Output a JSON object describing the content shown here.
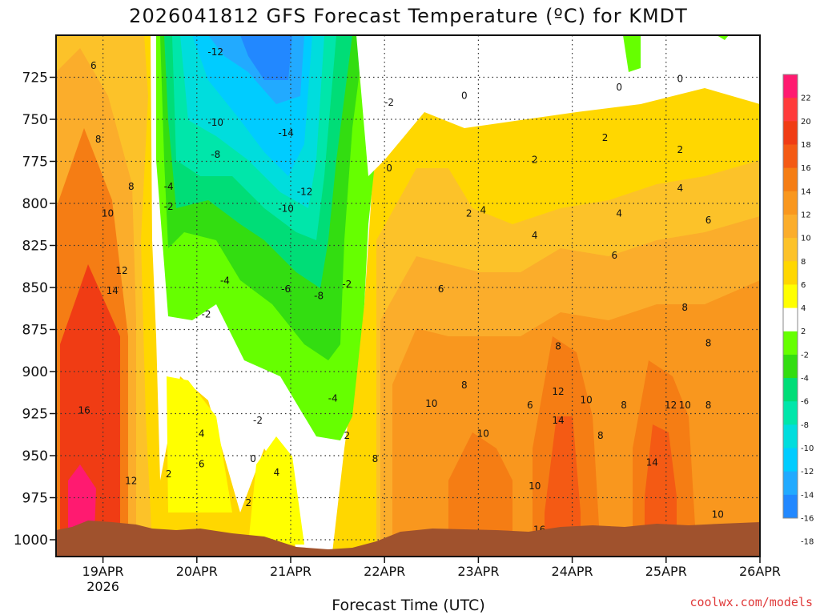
{
  "chart_data": {
    "type": "heatmap",
    "title": "2026041812 GFS Forecast Temperature (ºC) for KMDT",
    "xlabel": "Forecast Time (UTC)",
    "ylabel": "Pressure (hPa)",
    "credit": "coolwx.com/models",
    "x_ticks": [
      {
        "label": "19APR",
        "sub": "2026",
        "day": 1
      },
      {
        "label": "20APR",
        "sub": "",
        "day": 2
      },
      {
        "label": "21APR",
        "sub": "",
        "day": 3
      },
      {
        "label": "22APR",
        "sub": "",
        "day": 4
      },
      {
        "label": "23APR",
        "sub": "",
        "day": 5
      },
      {
        "label": "24APR",
        "sub": "",
        "day": 6
      },
      {
        "label": "25APR",
        "sub": "",
        "day": 7
      },
      {
        "label": "26APR",
        "sub": "",
        "day": 8
      }
    ],
    "xlim": [
      0.5,
      8.0
    ],
    "y_ticks": [
      725,
      750,
      775,
      800,
      825,
      850,
      875,
      900,
      925,
      950,
      975,
      1000
    ],
    "ylim": [
      1010,
      700
    ],
    "colorbar": {
      "labels": [
        22,
        20,
        18,
        16,
        14,
        12,
        10,
        8,
        6,
        4,
        2,
        -2,
        -4,
        -6,
        -8,
        -10,
        -12,
        -14,
        -16,
        -18
      ],
      "colors": [
        "#ff1a70",
        "#ff3b3b",
        "#f03c14",
        "#f45a14",
        "#f57d14",
        "#f9971e",
        "#fbad2b",
        "#fcc229",
        "#ffd700",
        "#ffff00",
        "#ffffff",
        "#66ff00",
        "#33dd11",
        "#00dd77",
        "#00e6aa",
        "#00dddd",
        "#00ccff",
        "#22aaff",
        "#2288ff"
      ]
    },
    "contour_labels": [
      {
        "day": 0.9,
        "p": 718,
        "text": "6"
      },
      {
        "day": 0.95,
        "p": 762,
        "text": "8"
      },
      {
        "day": 1.3,
        "p": 790,
        "text": "8"
      },
      {
        "day": 1.05,
        "p": 806,
        "text": "10"
      },
      {
        "day": 1.2,
        "p": 840,
        "text": "12"
      },
      {
        "day": 1.1,
        "p": 852,
        "text": "14"
      },
      {
        "day": 0.8,
        "p": 923,
        "text": "16"
      },
      {
        "day": 1.3,
        "p": 965,
        "text": "12"
      },
      {
        "day": 1.7,
        "p": 790,
        "text": "-4"
      },
      {
        "day": 1.7,
        "p": 802,
        "text": "-2"
      },
      {
        "day": 2.2,
        "p": 710,
        "text": "-12"
      },
      {
        "day": 2.2,
        "p": 752,
        "text": "-10"
      },
      {
        "day": 2.2,
        "p": 771,
        "text": "-8"
      },
      {
        "day": 2.3,
        "p": 846,
        "text": "-4"
      },
      {
        "day": 2.1,
        "p": 866,
        "text": "-2"
      },
      {
        "day": 2.05,
        "p": 937,
        "text": "4"
      },
      {
        "day": 2.05,
        "p": 955,
        "text": "6"
      },
      {
        "day": 1.7,
        "p": 961,
        "text": "2"
      },
      {
        "day": 2.65,
        "p": 929,
        "text": "-2"
      },
      {
        "day": 2.6,
        "p": 952,
        "text": "0"
      },
      {
        "day": 2.55,
        "p": 978,
        "text": "2"
      },
      {
        "day": 2.85,
        "p": 960,
        "text": "4"
      },
      {
        "day": 2.95,
        "p": 758,
        "text": "-14"
      },
      {
        "day": 3.15,
        "p": 793,
        "text": "-12"
      },
      {
        "day": 2.95,
        "p": 803,
        "text": "-10"
      },
      {
        "day": 2.95,
        "p": 851,
        "text": "-6"
      },
      {
        "day": 3.3,
        "p": 855,
        "text": "-8"
      },
      {
        "day": 3.45,
        "p": 916,
        "text": "-4"
      },
      {
        "day": 3.6,
        "p": 848,
        "text": "-2"
      },
      {
        "day": 3.6,
        "p": 938,
        "text": "2"
      },
      {
        "day": 3.9,
        "p": 952,
        "text": "8"
      },
      {
        "day": 4.05,
        "p": 740,
        "text": "-2"
      },
      {
        "day": 4.05,
        "p": 779,
        "text": "0"
      },
      {
        "day": 4.85,
        "p": 736,
        "text": "0"
      },
      {
        "day": 4.9,
        "p": 806,
        "text": "2"
      },
      {
        "day": 5.05,
        "p": 804,
        "text": "4"
      },
      {
        "day": 4.6,
        "p": 851,
        "text": "6"
      },
      {
        "day": 4.5,
        "p": 919,
        "text": "10"
      },
      {
        "day": 4.85,
        "p": 908,
        "text": "8"
      },
      {
        "day": 5.05,
        "p": 937,
        "text": "10"
      },
      {
        "day": 5.55,
        "p": 920,
        "text": "6"
      },
      {
        "day": 5.6,
        "p": 774,
        "text": "2"
      },
      {
        "day": 5.6,
        "p": 819,
        "text": "4"
      },
      {
        "day": 5.85,
        "p": 885,
        "text": "8"
      },
      {
        "day": 5.6,
        "p": 968,
        "text": "10"
      },
      {
        "day": 5.65,
        "p": 994,
        "text": "16"
      },
      {
        "day": 5.85,
        "p": 912,
        "text": "12"
      },
      {
        "day": 5.85,
        "p": 929,
        "text": "14"
      },
      {
        "day": 6.15,
        "p": 917,
        "text": "10"
      },
      {
        "day": 6.3,
        "p": 938,
        "text": "8"
      },
      {
        "day": 6.5,
        "p": 806,
        "text": "4"
      },
      {
        "day": 6.5,
        "p": 731,
        "text": "0"
      },
      {
        "day": 6.35,
        "p": 761,
        "text": "2"
      },
      {
        "day": 6.45,
        "p": 831,
        "text": "6"
      },
      {
        "day": 6.55,
        "p": 920,
        "text": "8"
      },
      {
        "day": 6.75,
        "p": 1006,
        "text": "10"
      },
      {
        "day": 6.85,
        "p": 954,
        "text": "14"
      },
      {
        "day": 7.05,
        "p": 920,
        "text": "12"
      },
      {
        "day": 7.2,
        "p": 920,
        "text": "10"
      },
      {
        "day": 7.45,
        "p": 920,
        "text": "8"
      },
      {
        "day": 7.15,
        "p": 726,
        "text": "0"
      },
      {
        "day": 7.15,
        "p": 768,
        "text": "2"
      },
      {
        "day": 7.15,
        "p": 791,
        "text": "4"
      },
      {
        "day": 7.45,
        "p": 810,
        "text": "6"
      },
      {
        "day": 7.2,
        "p": 862,
        "text": "8"
      },
      {
        "day": 7.45,
        "p": 883,
        "text": "8"
      },
      {
        "day": 7.55,
        "p": 985,
        "text": "10"
      },
      {
        "day": 7.55,
        "p": 1002,
        "text": "12"
      }
    ]
  }
}
